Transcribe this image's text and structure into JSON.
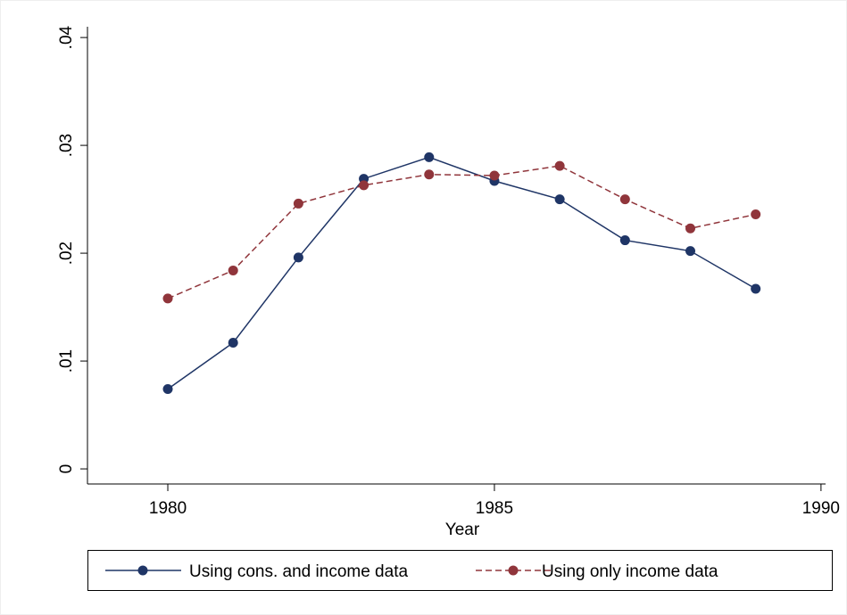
{
  "chart_data": {
    "type": "line",
    "xlabel": "Year",
    "x": [
      1980,
      1981,
      1982,
      1983,
      1984,
      1985,
      1986,
      1987,
      1988,
      1989
    ],
    "series": [
      {
        "name": "Using cons. and income data",
        "color": "#1f3566",
        "dashed": false,
        "values": [
          0.0074,
          0.0117,
          0.0196,
          0.0269,
          0.0289,
          0.0267,
          0.025,
          0.0212,
          0.0202,
          0.0167
        ]
      },
      {
        "name": "Using only income data",
        "color": "#90353b",
        "dashed": true,
        "values": [
          0.0158,
          0.0184,
          0.0246,
          0.0263,
          0.0273,
          0.0272,
          0.0281,
          0.025,
          0.0223,
          0.0236
        ]
      }
    ],
    "xlim": [
      1978.77,
      1990.07
    ],
    "xticks": [
      1980,
      1985,
      1990
    ],
    "ylim": [
      -0.0014,
      0.041
    ],
    "yticks": [
      {
        "value": 0,
        "label": "0"
      },
      {
        "value": 0.01,
        "label": ".01"
      },
      {
        "value": 0.02,
        "label": ".02"
      },
      {
        "value": 0.03,
        "label": ".03"
      },
      {
        "value": 0.04,
        "label": ".04"
      }
    ],
    "legend": "bottom"
  }
}
